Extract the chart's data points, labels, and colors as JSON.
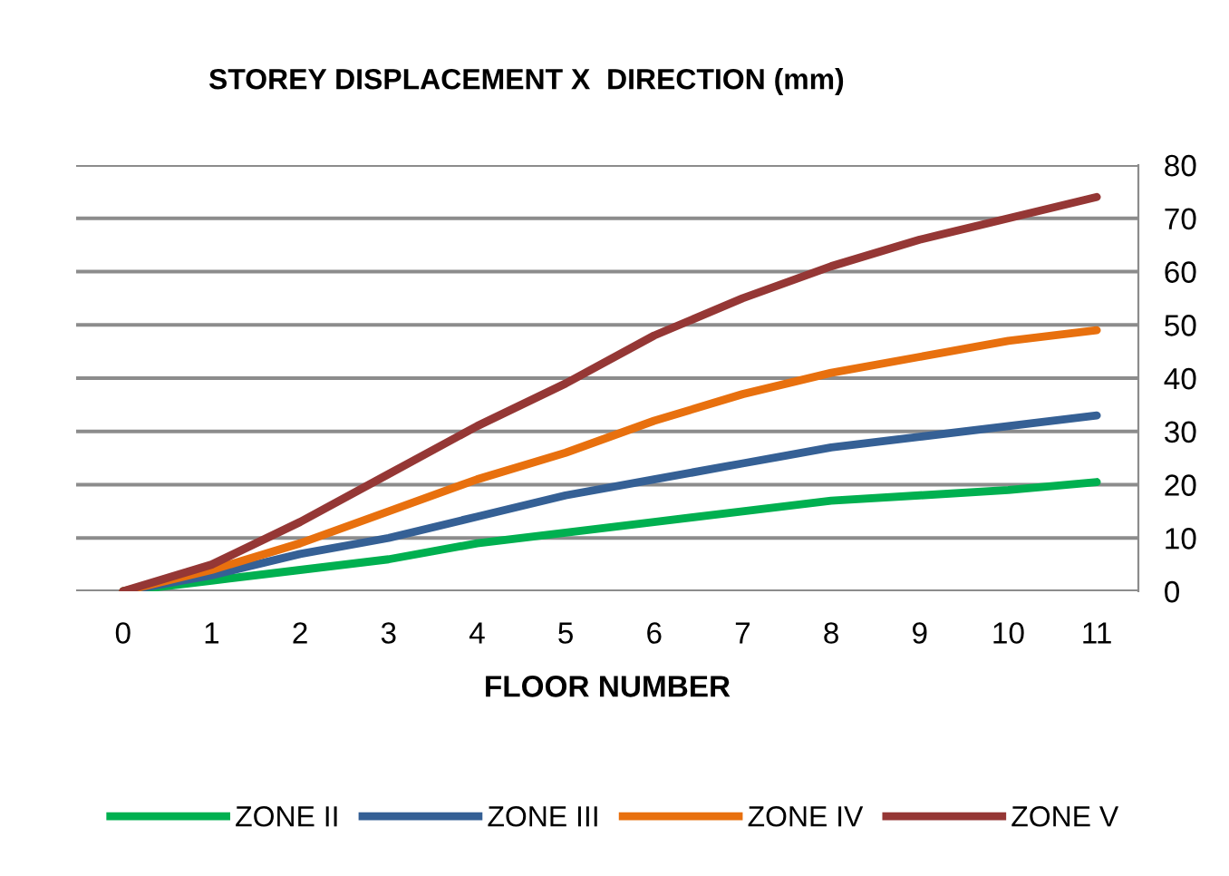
{
  "chart_data": {
    "type": "line",
    "title": "STOREY DISPLACEMENT X  DIRECTION (mm)",
    "xlabel": "FLOOR NUMBER",
    "categories": [
      "0",
      "1",
      "2",
      "3",
      "4",
      "5",
      "6",
      "7",
      "8",
      "9",
      "10",
      "11"
    ],
    "series": [
      {
        "name": "ZONE II",
        "color": "#00b050",
        "values": [
          0,
          2,
          4,
          6,
          9,
          11,
          13,
          15,
          17,
          18,
          19,
          20.5
        ]
      },
      {
        "name": "ZONE III",
        "color": "#356095",
        "values": [
          0,
          3,
          7,
          10,
          14,
          18,
          21,
          24,
          27,
          29,
          31,
          33
        ]
      },
      {
        "name": "ZONE IV",
        "color": "#e8700e",
        "values": [
          0,
          4,
          9,
          15,
          21,
          26,
          32,
          37,
          41,
          44,
          47,
          49
        ]
      },
      {
        "name": "ZONE V",
        "color": "#953735",
        "values": [
          0,
          5,
          13,
          22,
          31,
          39,
          48,
          55,
          61,
          66,
          70,
          74
        ]
      }
    ],
    "ylim": [
      0,
      80
    ],
    "yticks": [
      0,
      10,
      20,
      30,
      40,
      50,
      60,
      70,
      80
    ],
    "grid": "y",
    "legend": "bottom",
    "marker": "none",
    "line_style": "solid"
  }
}
